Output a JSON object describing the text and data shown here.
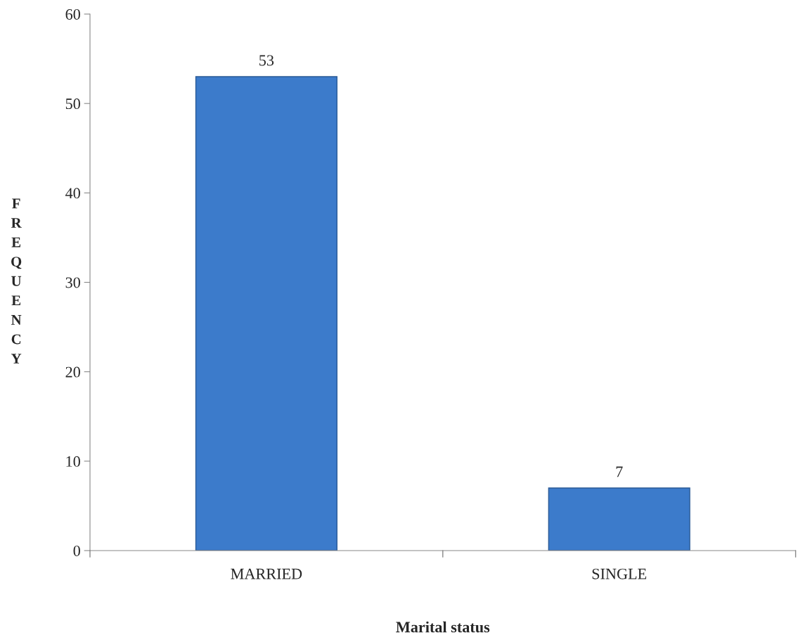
{
  "chart_data": {
    "type": "bar",
    "xlabel": "Marital status",
    "ylabel": "FREQUENCY",
    "categories": [
      "MARRIED",
      "SINGLE"
    ],
    "values": [
      53,
      7
    ],
    "color": "#3c7bcb",
    "ylim": [
      0,
      60
    ],
    "yticks": [
      0,
      10,
      20,
      30,
      40,
      50,
      60
    ],
    "grid": false,
    "data_labels": true
  }
}
